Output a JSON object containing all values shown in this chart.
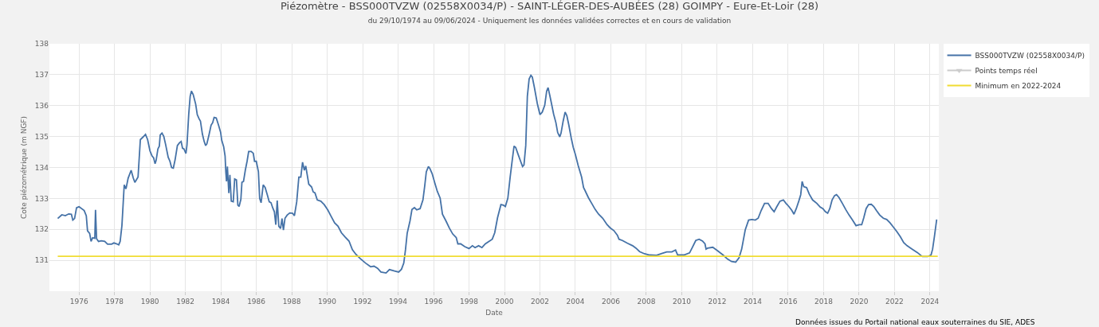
{
  "chart_data": {
    "type": "line",
    "title": "Piézomètre - BSS000TVZW (02558X0034/P) - SAINT-LÉGER-DES-AUBÉES (28) GOIMPY - Eure-Et-Loir (28)",
    "subtitle": "du 29/10/1974 au 09/06/2024 - Uniquement les données validées correctes et en cours de validation",
    "xlabel": "Date",
    "ylabel": "Cote piézométrique (m NGF)",
    "annotations": [
      "Données issues du Portail national eaux souterraines du SIE, ADES"
    ],
    "xlim": [
      1974.33,
      2024.5
    ],
    "xticks": [
      1976,
      1978,
      1980,
      1982,
      1984,
      1986,
      1988,
      1990,
      1992,
      1994,
      1996,
      1998,
      2000,
      2002,
      2004,
      2006,
      2008,
      2010,
      2012,
      2014,
      2016,
      2018,
      2020,
      2022,
      2024
    ],
    "ylim": [
      130,
      138
    ],
    "yticks": [
      {
        "value": 130,
        "label": null
      },
      131,
      132,
      133,
      134,
      135,
      136,
      137,
      138
    ],
    "grid": true,
    "legend": "top right",
    "line_style": "solid",
    "marker": "none",
    "series": [
      {
        "name": "BSS000TVZW (02558X0034/P)",
        "color": "#4572a7",
        "x": [
          1974.8,
          1975.03,
          1975.23,
          1975.42,
          1975.57,
          1975.65,
          1975.75,
          1975.86,
          1976.0,
          1976.29,
          1976.41,
          1976.48,
          1976.6,
          1976.68,
          1976.77,
          1976.89,
          1976.93,
          1976.99,
          1977.1,
          1977.26,
          1977.45,
          1977.61,
          1977.84,
          1977.97,
          1978.13,
          1978.24,
          1978.32,
          1978.42,
          1978.55,
          1978.65,
          1978.77,
          1978.94,
          1979.06,
          1979.15,
          1979.33,
          1979.46,
          1979.62,
          1979.75,
          1979.87,
          1980.0,
          1980.12,
          1980.21,
          1980.29,
          1980.35,
          1980.45,
          1980.53,
          1980.58,
          1980.68,
          1980.78,
          1980.89,
          1981.03,
          1981.13,
          1981.22,
          1981.32,
          1981.42,
          1981.55,
          1981.67,
          1981.76,
          1981.84,
          1981.92,
          1982.03,
          1982.09,
          1982.19,
          1982.27,
          1982.34,
          1982.44,
          1982.58,
          1982.67,
          1982.77,
          1982.85,
          1982.96,
          1983.06,
          1983.14,
          1983.21,
          1983.33,
          1983.45,
          1983.54,
          1983.62,
          1983.74,
          1983.87,
          1983.99,
          1984.05,
          1984.16,
          1984.24,
          1984.28,
          1984.32,
          1984.37,
          1984.45,
          1984.51,
          1984.59,
          1984.7,
          1984.78,
          1984.88,
          1984.96,
          1985.03,
          1985.13,
          1985.19,
          1985.28,
          1985.38,
          1985.48,
          1985.57,
          1985.71,
          1985.83,
          1985.9,
          1986.0,
          1986.12,
          1986.19,
          1986.27,
          1986.39,
          1986.5,
          1986.62,
          1986.73,
          1986.83,
          1986.93,
          1987.02,
          1987.1,
          1987.18,
          1987.27,
          1987.37,
          1987.45,
          1987.53,
          1987.62,
          1987.74,
          1987.89,
          1988.05,
          1988.15,
          1988.28,
          1988.4,
          1988.51,
          1988.61,
          1988.71,
          1988.79,
          1988.96,
          1989.12,
          1989.21,
          1989.31,
          1989.44,
          1989.64,
          1989.83,
          1990.03,
          1990.22,
          1990.42,
          1990.61,
          1990.8,
          1991.0,
          1991.23,
          1991.42,
          1991.62,
          1991.87,
          1992.16,
          1992.45,
          1992.64,
          1992.84,
          1993.03,
          1993.32,
          1993.51,
          1993.8,
          1994.03,
          1994.19,
          1994.32,
          1994.42,
          1994.51,
          1994.67,
          1994.78,
          1994.92,
          1995.05,
          1995.24,
          1995.4,
          1995.5,
          1995.59,
          1995.71,
          1995.79,
          1995.92,
          1996.06,
          1996.21,
          1996.37,
          1996.5,
          1996.7,
          1996.89,
          1997.08,
          1997.28,
          1997.37,
          1997.53,
          1997.76,
          1998.0,
          1998.19,
          1998.34,
          1998.54,
          1998.73,
          1998.92,
          1999.12,
          1999.31,
          1999.45,
          1999.61,
          1999.8,
          1999.94,
          2000.05,
          2000.19,
          2000.32,
          2000.44,
          2000.54,
          2000.63,
          2000.77,
          2000.91,
          2001.02,
          2001.1,
          2001.2,
          2001.29,
          2001.39,
          2001.49,
          2001.57,
          2001.69,
          2001.85,
          2002.0,
          2002.13,
          2002.27,
          2002.38,
          2002.46,
          2002.56,
          2002.65,
          2002.77,
          2002.9,
          2003.0,
          2003.12,
          2003.19,
          2003.31,
          2003.42,
          2003.52,
          2003.63,
          2003.77,
          2003.88,
          2004.0,
          2004.15,
          2004.35,
          2004.46,
          2004.54,
          2004.73,
          2004.92,
          2005.12,
          2005.31,
          2005.54,
          2005.79,
          2005.98,
          2006.17,
          2006.37,
          2006.46,
          2006.65,
          2006.94,
          2007.23,
          2007.42,
          2007.62,
          2007.9,
          2008.19,
          2008.58,
          2008.87,
          2009.15,
          2009.44,
          2009.65,
          2009.77,
          2010.12,
          2010.44,
          2010.6,
          2010.79,
          2010.98,
          2011.17,
          2011.31,
          2011.37,
          2011.46,
          2011.75,
          2012.04,
          2012.33,
          2012.58,
          2012.81,
          2013.04,
          2013.23,
          2013.38,
          2013.58,
          2013.77,
          2013.96,
          2014.15,
          2014.31,
          2014.48,
          2014.67,
          2014.87,
          2015.06,
          2015.21,
          2015.35,
          2015.54,
          2015.73,
          2015.88,
          2016.04,
          2016.21,
          2016.33,
          2016.46,
          2016.6,
          2016.71,
          2016.79,
          2016.88,
          2017.04,
          2017.19,
          2017.38,
          2017.62,
          2017.81,
          2017.96,
          2018.1,
          2018.23,
          2018.35,
          2018.48,
          2018.62,
          2018.73,
          2018.87,
          2019.06,
          2019.25,
          2019.44,
          2019.63,
          2019.83,
          2020.02,
          2020.15,
          2020.27,
          2020.4,
          2020.54,
          2020.69,
          2020.83,
          2020.98,
          2021.17,
          2021.37,
          2021.56,
          2021.75,
          2021.94,
          2022.13,
          2022.33,
          2022.52,
          2022.71,
          2023.0,
          2023.29,
          2023.48,
          2023.58,
          2023.87,
          2024.06,
          2024.15,
          2024.25,
          2024.38
        ],
        "values": [
          132.35,
          132.47,
          132.44,
          132.5,
          132.49,
          132.3,
          132.35,
          132.7,
          132.73,
          132.61,
          132.44,
          131.95,
          131.87,
          131.61,
          131.73,
          131.71,
          132.63,
          131.7,
          131.61,
          131.63,
          131.61,
          131.52,
          131.52,
          131.56,
          131.53,
          131.5,
          131.61,
          132.12,
          133.44,
          133.31,
          133.65,
          133.91,
          133.66,
          133.52,
          133.69,
          134.9,
          134.99,
          135.07,
          134.9,
          134.54,
          134.37,
          134.31,
          134.12,
          134.23,
          134.6,
          134.69,
          135.05,
          135.11,
          135.01,
          134.73,
          134.33,
          134.2,
          134.0,
          133.98,
          134.25,
          134.71,
          134.8,
          134.84,
          134.62,
          134.6,
          134.45,
          134.73,
          135.73,
          136.3,
          136.47,
          136.36,
          136.05,
          135.71,
          135.58,
          135.5,
          135.08,
          134.84,
          134.71,
          134.76,
          135.05,
          135.37,
          135.45,
          135.62,
          135.6,
          135.37,
          135.13,
          134.88,
          134.67,
          134.37,
          133.86,
          133.55,
          134.03,
          133.17,
          133.76,
          132.91,
          132.89,
          133.63,
          133.6,
          132.78,
          132.74,
          132.97,
          133.52,
          133.55,
          133.91,
          134.2,
          134.52,
          134.52,
          134.46,
          134.2,
          134.2,
          133.86,
          133.0,
          132.86,
          133.44,
          133.35,
          133.12,
          132.89,
          132.86,
          132.69,
          132.57,
          132.15,
          132.93,
          132.1,
          132.03,
          132.35,
          131.98,
          132.36,
          132.46,
          132.53,
          132.52,
          132.44,
          132.89,
          133.69,
          133.69,
          134.17,
          133.91,
          134.05,
          133.46,
          133.37,
          133.21,
          133.18,
          132.95,
          132.91,
          132.8,
          132.63,
          132.42,
          132.21,
          132.1,
          131.89,
          131.76,
          131.62,
          131.34,
          131.19,
          131.05,
          130.91,
          130.79,
          130.81,
          130.74,
          130.62,
          130.59,
          130.7,
          130.65,
          130.62,
          130.71,
          130.91,
          131.36,
          131.87,
          132.27,
          132.64,
          132.7,
          132.63,
          132.67,
          132.95,
          133.4,
          133.86,
          134.03,
          133.97,
          133.8,
          133.52,
          133.23,
          133.01,
          132.49,
          132.27,
          132.04,
          131.85,
          131.73,
          131.53,
          131.53,
          131.44,
          131.38,
          131.47,
          131.41,
          131.47,
          131.41,
          131.53,
          131.61,
          131.68,
          131.89,
          132.38,
          132.8,
          132.78,
          132.74,
          133.01,
          133.69,
          134.25,
          134.69,
          134.65,
          134.42,
          134.2,
          134.03,
          134.08,
          134.71,
          136.3,
          136.86,
          136.98,
          136.92,
          136.58,
          136.07,
          135.71,
          135.79,
          136.01,
          136.47,
          136.58,
          136.32,
          136.07,
          135.73,
          135.45,
          135.13,
          134.99,
          135.11,
          135.5,
          135.79,
          135.67,
          135.37,
          134.94,
          134.65,
          134.42,
          134.08,
          133.69,
          133.35,
          133.26,
          133.03,
          132.84,
          132.64,
          132.49,
          132.36,
          132.15,
          132.04,
          131.96,
          131.81,
          131.68,
          131.64,
          131.55,
          131.47,
          131.39,
          131.28,
          131.21,
          131.17,
          131.16,
          131.22,
          131.27,
          131.27,
          131.33,
          131.17,
          131.17,
          131.24,
          131.42,
          131.64,
          131.68,
          131.62,
          131.53,
          131.36,
          131.39,
          131.42,
          131.3,
          131.17,
          131.04,
          130.96,
          130.94,
          131.08,
          131.36,
          131.98,
          132.3,
          132.32,
          132.3,
          132.36,
          132.61,
          132.84,
          132.84,
          132.67,
          132.57,
          132.72,
          132.91,
          132.95,
          132.84,
          132.74,
          132.61,
          132.49,
          132.67,
          132.91,
          133.12,
          133.55,
          133.38,
          133.35,
          133.14,
          132.95,
          132.84,
          132.72,
          132.67,
          132.57,
          132.52,
          132.67,
          132.95,
          133.09,
          133.12,
          133.03,
          132.84,
          132.64,
          132.46,
          132.3,
          132.12,
          132.15,
          132.15,
          132.38,
          132.67,
          132.8,
          132.81,
          132.74,
          132.61,
          132.46,
          132.36,
          132.32,
          132.21,
          132.07,
          131.93,
          131.76,
          131.57,
          131.47,
          131.36,
          131.25,
          131.16,
          131.12,
          131.12,
          131.17,
          131.36,
          131.76,
          132.32
        ]
      },
      {
        "name": "Points temps réel",
        "color": "#cccccc",
        "marker": "triangle-down"
      },
      {
        "name": "Minimum en 2022-2024",
        "color": "#f0dc32",
        "x": [
          1974.8,
          2024.44
        ],
        "values": [
          131.13,
          131.13
        ]
      }
    ]
  }
}
